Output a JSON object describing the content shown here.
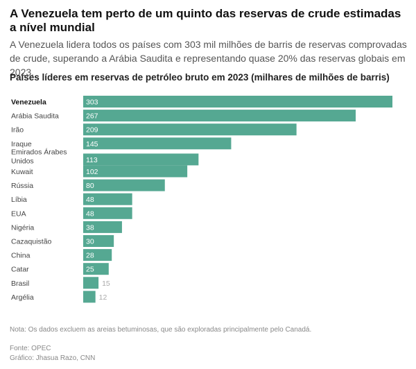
{
  "title": "A Venezuela tem perto de um quinto das reservas de crude estimadas a nível mundial",
  "subtitle": "A Venezuela lidera todos os países com 303 mil milhões de barris de reservas comprovadas de crude, superando a Arábia Saudita e representando quase 20% das reservas globais em 2023.",
  "note": "Nota: Os dados excluem as areias betuminosas, que são exploradas principalmente pelo Canadá.",
  "source": "Fonte: OPEC",
  "credit": "Gráfico: Jhasua Razo, CNN",
  "colors": {
    "bar": "#55a892",
    "label_inside": "#ffffff",
    "label_outside": "#aaaaaa"
  },
  "chart_data": {
    "type": "bar",
    "orientation": "horizontal",
    "title": "Países líderes em reservas de petróleo bruto em 2023 (milhares de milhões de barris)",
    "xlabel": "",
    "ylabel": "",
    "xlim": [
      0,
      303
    ],
    "grid": false,
    "legend": "none",
    "categories": [
      "Venezuela",
      "Arábia Saudita",
      "Irão",
      "Iraque",
      "Emirados Árabes Unidos",
      "Kuwait",
      "Rússia",
      "Líbia",
      "EUA",
      "Nigéria",
      "Cazaquistão",
      "China",
      "Catar",
      "Brasil",
      "Argélia"
    ],
    "category_lines": [
      [
        "Venezuela"
      ],
      [
        "Arábia Saudita"
      ],
      [
        "Irão"
      ],
      [
        "Iraque"
      ],
      [
        "Emirados Árabes",
        "Unidos"
      ],
      [
        "Kuwait"
      ],
      [
        "Rússia"
      ],
      [
        "Líbia"
      ],
      [
        "EUA"
      ],
      [
        "Nigéria"
      ],
      [
        "Cazaquistão"
      ],
      [
        "China"
      ],
      [
        "Catar"
      ],
      [
        "Brasil"
      ],
      [
        "Argélia"
      ]
    ],
    "values": [
      303,
      267,
      209,
      145,
      113,
      102,
      80,
      48,
      48,
      38,
      30,
      28,
      25,
      15,
      12
    ],
    "highlight": "Venezuela"
  }
}
